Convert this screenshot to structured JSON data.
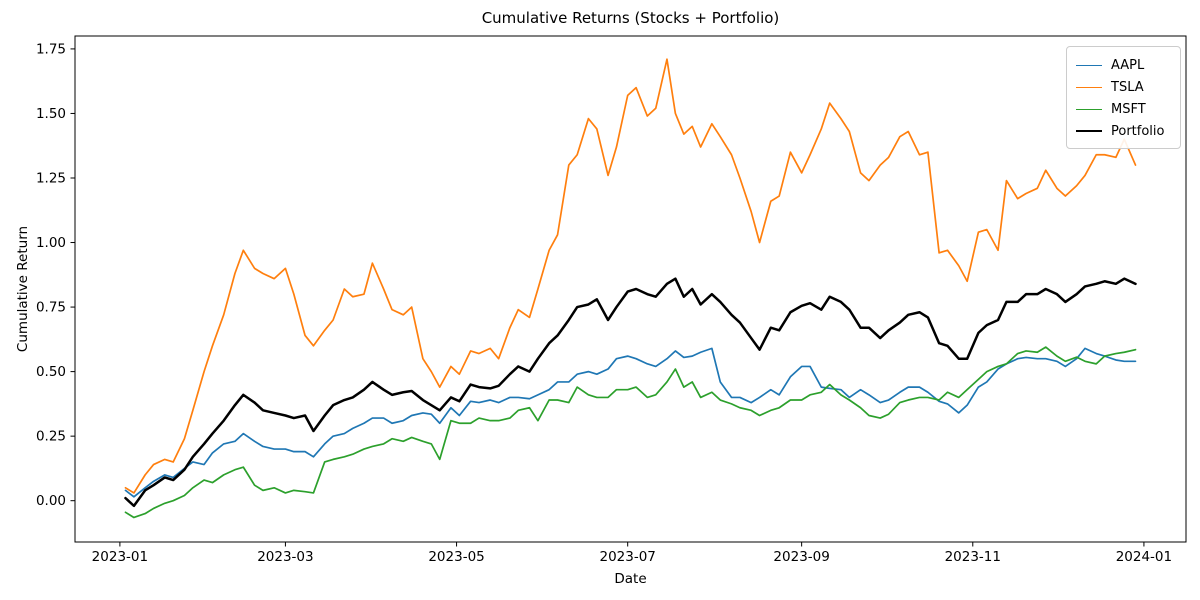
{
  "chart_data": {
    "type": "line",
    "title": "Cumulative Returns (Stocks + Portfolio)",
    "xlabel": "Date",
    "ylabel": "Cumulative Return",
    "background": "#ffffff",
    "grid": false,
    "legend": {
      "position": "upper right",
      "entries": [
        "AAPL",
        "TSLA",
        "MSFT",
        "Portfolio"
      ]
    },
    "x_unit": "day of year 2023 (0 = 2023-01-01)",
    "xlim_days": [
      -16,
      380
    ],
    "ylim": [
      -0.16,
      1.8
    ],
    "x_ticks": [
      {
        "day": 0,
        "label": "2023-01"
      },
      {
        "day": 59,
        "label": "2023-03"
      },
      {
        "day": 120,
        "label": "2023-05"
      },
      {
        "day": 181,
        "label": "2023-07"
      },
      {
        "day": 243,
        "label": "2023-09"
      },
      {
        "day": 304,
        "label": "2023-11"
      },
      {
        "day": 365,
        "label": "2024-01"
      }
    ],
    "y_ticks": [
      {
        "value": 0.0,
        "label": "0.00"
      },
      {
        "value": 0.25,
        "label": "0.25"
      },
      {
        "value": 0.5,
        "label": "0.50"
      },
      {
        "value": 0.75,
        "label": "0.75"
      },
      {
        "value": 1.0,
        "label": "1.00"
      },
      {
        "value": 1.25,
        "label": "1.25"
      },
      {
        "value": 1.5,
        "label": "1.50"
      },
      {
        "value": 1.75,
        "label": "1.75"
      }
    ],
    "x_days": [
      2,
      5,
      9,
      12,
      16,
      19,
      23,
      26,
      30,
      33,
      37,
      41,
      44,
      48,
      51,
      55,
      59,
      62,
      66,
      69,
      73,
      76,
      80,
      83,
      87,
      90,
      94,
      97,
      101,
      104,
      108,
      111,
      114,
      118,
      121,
      125,
      128,
      132,
      135,
      139,
      142,
      146,
      149,
      153,
      156,
      160,
      163,
      167,
      170,
      174,
      177,
      181,
      184,
      188,
      191,
      195,
      198,
      201,
      204,
      207,
      211,
      214,
      218,
      221,
      225,
      228,
      232,
      235,
      239,
      243,
      246,
      250,
      253,
      257,
      260,
      264,
      267,
      271,
      274,
      278,
      281,
      285,
      288,
      292,
      295,
      299,
      302,
      306,
      309,
      313,
      316,
      320,
      323,
      327,
      330,
      334,
      337,
      341,
      344,
      348,
      351,
      355,
      358,
      362
    ],
    "series": [
      {
        "name": "AAPL",
        "color": "#1f77b4",
        "line_width": 1.7,
        "values": [
          0.04,
          0.015,
          0.05,
          0.075,
          0.1,
          0.09,
          0.125,
          0.15,
          0.14,
          0.185,
          0.22,
          0.23,
          0.26,
          0.23,
          0.21,
          0.2,
          0.2,
          0.19,
          0.19,
          0.17,
          0.22,
          0.25,
          0.26,
          0.28,
          0.3,
          0.32,
          0.32,
          0.3,
          0.31,
          0.33,
          0.34,
          0.335,
          0.3,
          0.36,
          0.33,
          0.385,
          0.38,
          0.39,
          0.38,
          0.4,
          0.4,
          0.395,
          0.41,
          0.43,
          0.46,
          0.46,
          0.49,
          0.5,
          0.49,
          0.51,
          0.55,
          0.56,
          0.55,
          0.53,
          0.52,
          0.55,
          0.58,
          0.555,
          0.56,
          0.575,
          0.59,
          0.46,
          0.4,
          0.4,
          0.38,
          0.4,
          0.43,
          0.41,
          0.48,
          0.52,
          0.52,
          0.44,
          0.435,
          0.43,
          0.4,
          0.43,
          0.41,
          0.38,
          0.39,
          0.42,
          0.44,
          0.44,
          0.42,
          0.385,
          0.375,
          0.34,
          0.37,
          0.44,
          0.46,
          0.51,
          0.53,
          0.55,
          0.555,
          0.55,
          0.55,
          0.54,
          0.52,
          0.55,
          0.59,
          0.57,
          0.56,
          0.545,
          0.54,
          0.54
        ]
      },
      {
        "name": "TSLA",
        "color": "#ff7f0e",
        "line_width": 1.7,
        "values": [
          0.05,
          0.03,
          0.1,
          0.14,
          0.16,
          0.15,
          0.24,
          0.35,
          0.5,
          0.6,
          0.72,
          0.88,
          0.97,
          0.9,
          0.88,
          0.86,
          0.9,
          0.8,
          0.64,
          0.6,
          0.66,
          0.7,
          0.82,
          0.79,
          0.8,
          0.92,
          0.82,
          0.74,
          0.72,
          0.75,
          0.55,
          0.5,
          0.44,
          0.52,
          0.49,
          0.58,
          0.57,
          0.59,
          0.55,
          0.67,
          0.74,
          0.71,
          0.82,
          0.97,
          1.03,
          1.3,
          1.34,
          1.48,
          1.44,
          1.26,
          1.37,
          1.57,
          1.6,
          1.49,
          1.52,
          1.71,
          1.5,
          1.42,
          1.45,
          1.37,
          1.46,
          1.41,
          1.34,
          1.25,
          1.12,
          1.0,
          1.16,
          1.18,
          1.35,
          1.27,
          1.34,
          1.44,
          1.54,
          1.48,
          1.43,
          1.27,
          1.24,
          1.3,
          1.33,
          1.41,
          1.43,
          1.34,
          1.35,
          0.96,
          0.97,
          0.91,
          0.85,
          1.04,
          1.05,
          0.97,
          1.24,
          1.17,
          1.19,
          1.21,
          1.28,
          1.21,
          1.18,
          1.22,
          1.26,
          1.34,
          1.34,
          1.33,
          1.4,
          1.3
        ]
      },
      {
        "name": "MSFT",
        "color": "#2ca02c",
        "line_width": 1.7,
        "values": [
          -0.045,
          -0.065,
          -0.05,
          -0.03,
          -0.01,
          0.0,
          0.02,
          0.05,
          0.08,
          0.07,
          0.1,
          0.12,
          0.13,
          0.06,
          0.04,
          0.05,
          0.03,
          0.04,
          0.035,
          0.03,
          0.15,
          0.16,
          0.17,
          0.18,
          0.2,
          0.21,
          0.22,
          0.24,
          0.23,
          0.245,
          0.23,
          0.22,
          0.16,
          0.31,
          0.3,
          0.3,
          0.32,
          0.31,
          0.31,
          0.32,
          0.35,
          0.36,
          0.31,
          0.39,
          0.39,
          0.38,
          0.44,
          0.41,
          0.4,
          0.4,
          0.43,
          0.43,
          0.44,
          0.4,
          0.41,
          0.46,
          0.51,
          0.44,
          0.46,
          0.4,
          0.42,
          0.39,
          0.375,
          0.36,
          0.35,
          0.33,
          0.35,
          0.36,
          0.39,
          0.39,
          0.41,
          0.42,
          0.45,
          0.41,
          0.39,
          0.36,
          0.33,
          0.32,
          0.335,
          0.38,
          0.39,
          0.4,
          0.4,
          0.39,
          0.42,
          0.4,
          0.43,
          0.47,
          0.5,
          0.52,
          0.53,
          0.57,
          0.58,
          0.575,
          0.595,
          0.56,
          0.54,
          0.556,
          0.54,
          0.53,
          0.56,
          0.57,
          0.575,
          0.585
        ]
      },
      {
        "name": "Portfolio",
        "color": "#000000",
        "line_width": 2.5,
        "values": [
          0.01,
          -0.02,
          0.04,
          0.06,
          0.09,
          0.08,
          0.12,
          0.17,
          0.22,
          0.26,
          0.31,
          0.37,
          0.41,
          0.38,
          0.35,
          0.34,
          0.33,
          0.32,
          0.33,
          0.27,
          0.33,
          0.37,
          0.39,
          0.4,
          0.43,
          0.46,
          0.43,
          0.41,
          0.42,
          0.425,
          0.39,
          0.37,
          0.35,
          0.4,
          0.385,
          0.45,
          0.44,
          0.435,
          0.445,
          0.49,
          0.52,
          0.5,
          0.55,
          0.61,
          0.64,
          0.7,
          0.75,
          0.76,
          0.78,
          0.7,
          0.75,
          0.81,
          0.82,
          0.8,
          0.79,
          0.84,
          0.86,
          0.79,
          0.82,
          0.76,
          0.8,
          0.77,
          0.72,
          0.69,
          0.63,
          0.585,
          0.67,
          0.66,
          0.73,
          0.755,
          0.765,
          0.74,
          0.79,
          0.77,
          0.74,
          0.67,
          0.67,
          0.63,
          0.66,
          0.69,
          0.72,
          0.73,
          0.71,
          0.61,
          0.6,
          0.55,
          0.55,
          0.65,
          0.68,
          0.7,
          0.77,
          0.77,
          0.8,
          0.8,
          0.82,
          0.8,
          0.77,
          0.8,
          0.83,
          0.84,
          0.85,
          0.84,
          0.86,
          0.84
        ]
      }
    ]
  }
}
